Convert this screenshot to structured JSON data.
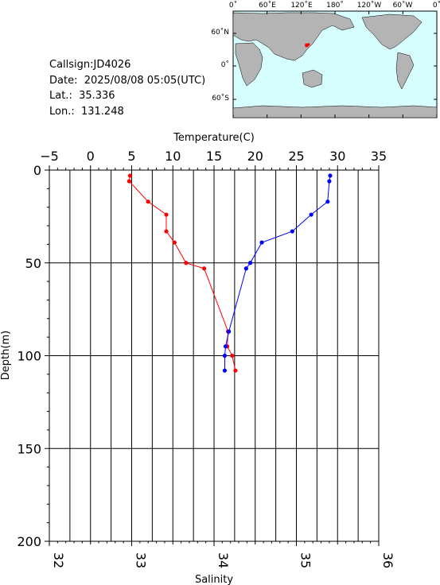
{
  "info": {
    "callsign": "Callsign:JD4026",
    "date": "Date:  2025/08/08 05:05(UTC)",
    "lat": "Lat.:  35.336",
    "lon": "Lon.:  131.248"
  },
  "map": {
    "top_labels": [
      "0˚",
      "60˚E",
      "120˚E",
      "180˚",
      "120˚W",
      "60˚W",
      "0˚"
    ],
    "left_labels": [
      "60˚N",
      "0˚",
      "60˚S"
    ],
    "ocean_color": "#d8ffff",
    "land_color": "#b4b4b4",
    "marker_color": "#ff0000"
  },
  "chart_data": {
    "type": "line",
    "title": "",
    "x_top_label": "Temperature(C)",
    "x_bottom_label": "Salinity",
    "ylabel": "Depth(m)",
    "x_top_ticks": [
      "−5",
      "0",
      "5",
      "10",
      "15",
      "20",
      "25",
      "30",
      "35"
    ],
    "x_bottom_ticks": [
      "32",
      "33",
      "34",
      "35",
      "36"
    ],
    "y_ticks": [
      "0",
      "50",
      "100",
      "150",
      "200"
    ],
    "temperature_range": [
      -5,
      35
    ],
    "salinity_range": [
      32,
      36
    ],
    "depth_range": [
      0,
      200
    ],
    "series": [
      {
        "axis": "temperature",
        "color": "#ff0000",
        "points": [
          {
            "value": 4.8,
            "depth": 3
          },
          {
            "value": 4.7,
            "depth": 6
          },
          {
            "value": 7.0,
            "depth": 17
          },
          {
            "value": 9.2,
            "depth": 24
          },
          {
            "value": 9.2,
            "depth": 33
          },
          {
            "value": 10.2,
            "depth": 39
          },
          {
            "value": 11.6,
            "depth": 50
          },
          {
            "value": 13.8,
            "depth": 53
          },
          {
            "value": 16.7,
            "depth": 87
          },
          {
            "value": 16.6,
            "depth": 95
          },
          {
            "value": 17.2,
            "depth": 100
          },
          {
            "value": 17.6,
            "depth": 108
          }
        ]
      },
      {
        "axis": "salinity",
        "color": "#0000ff",
        "points": [
          {
            "value": 35.41,
            "depth": 3
          },
          {
            "value": 35.4,
            "depth": 6
          },
          {
            "value": 35.38,
            "depth": 17
          },
          {
            "value": 35.18,
            "depth": 24
          },
          {
            "value": 34.95,
            "depth": 33
          },
          {
            "value": 34.58,
            "depth": 39
          },
          {
            "value": 34.44,
            "depth": 50
          },
          {
            "value": 34.39,
            "depth": 53
          },
          {
            "value": 34.18,
            "depth": 87
          },
          {
            "value": 34.14,
            "depth": 95
          },
          {
            "value": 34.13,
            "depth": 100
          },
          {
            "value": 34.13,
            "depth": 108
          }
        ]
      }
    ],
    "grid": true
  }
}
